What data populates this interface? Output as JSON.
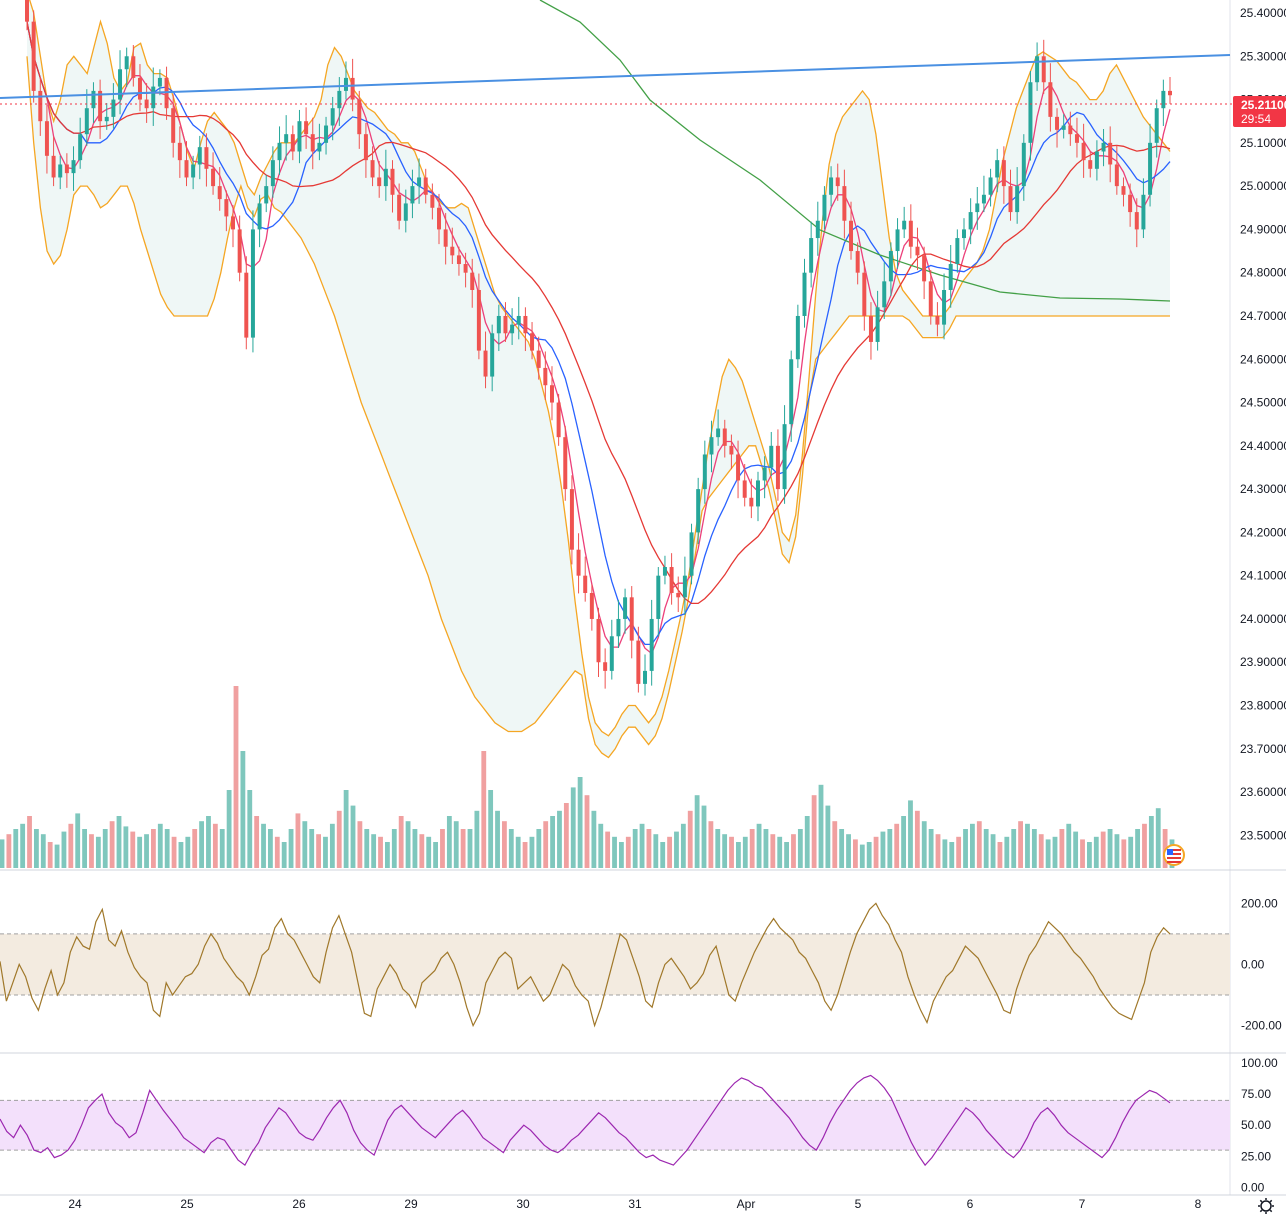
{
  "chart_data": [
    {
      "type": "candlestick",
      "y_ticks": [
        "25.40000",
        "25.30000",
        "25.20000",
        "25.10000",
        "25.00000",
        "24.90000",
        "24.80000",
        "24.70000",
        "24.60000",
        "24.50000",
        "24.40000",
        "24.30000",
        "24.20000",
        "24.10000",
        "24.00000",
        "23.90000",
        "23.80000",
        "23.70000",
        "23.60000",
        "23.50000"
      ],
      "ylim": [
        23.42,
        25.43
      ],
      "x_ticks": [
        "24",
        "25",
        "26",
        "29",
        "30",
        "31",
        "Apr",
        "5",
        "6",
        "7",
        "8"
      ],
      "price_label": {
        "value": "25.21100",
        "countdown": "29:54",
        "color": "#f23645"
      },
      "colors": {
        "up": "#26a69a",
        "down": "#ef5350",
        "trend_line": "#4a90e2",
        "bb_band": "#f5a623",
        "bb_basis": "#2962ff",
        "ma_fast": "#ec407a",
        "ma_mid": "#e53935",
        "ma_slow": "#43a047",
        "cci": "#a0782a",
        "rsi": "#9c27b0",
        "volume_up": "#7fc7bd",
        "volume_down": "#f0a0a0"
      },
      "close_series": [
        25.38,
        25.22,
        25.15,
        25.07,
        25.02,
        25.05,
        25.03,
        25.06,
        25.12,
        25.18,
        25.22,
        25.15,
        25.16,
        25.2,
        25.27,
        25.3,
        25.25,
        25.2,
        25.18,
        25.23,
        25.25,
        25.18,
        25.1,
        25.06,
        25.02,
        25.05,
        25.09,
        25.04,
        25.0,
        24.97,
        24.93,
        24.9,
        24.8,
        24.65,
        24.9,
        24.96,
        25.0,
        25.06,
        25.1,
        25.12,
        25.08,
        25.15,
        25.12,
        25.08,
        25.1,
        25.14,
        25.18,
        25.22,
        25.25,
        25.2,
        25.12,
        25.06,
        25.02,
        25.0,
        25.04,
        24.98,
        24.92,
        24.96,
        25.0,
        25.02,
        24.98,
        24.95,
        24.9,
        24.86,
        24.84,
        24.82,
        24.8,
        24.76,
        24.62,
        24.56,
        24.66,
        24.7,
        24.66,
        24.68,
        24.7,
        24.66,
        24.62,
        24.58,
        24.54,
        24.5,
        24.42,
        24.3,
        24.16,
        24.1,
        24.06,
        24.0,
        23.9,
        23.88,
        23.96,
        24.0,
        24.05,
        23.95,
        23.85,
        23.88,
        24.0,
        24.1,
        24.12,
        24.06,
        24.05,
        24.1,
        24.2,
        24.3,
        24.38,
        24.42,
        24.44,
        24.4,
        24.38,
        24.32,
        24.28,
        24.26,
        24.32,
        24.35,
        24.4,
        24.3,
        24.45,
        24.6,
        24.7,
        24.8,
        24.88,
        24.92,
        24.98,
        25.02,
        25.0,
        24.92,
        24.85,
        24.8,
        24.7,
        24.64,
        24.72,
        24.78,
        24.85,
        24.9,
        24.92,
        24.86,
        24.84,
        24.78,
        24.7,
        24.68,
        24.76,
        24.82,
        24.88,
        24.9,
        24.94,
        24.96,
        24.98,
        25.02,
        25.06,
        25.0,
        24.94,
        25.0,
        25.1,
        25.24,
        25.3,
        25.24,
        25.16,
        25.13,
        25.14,
        25.12,
        25.1,
        25.06,
        25.04,
        25.08,
        25.1,
        25.05,
        25.0,
        24.98,
        24.94,
        24.9,
        24.98,
        25.1,
        25.18,
        25.22,
        25.21
      ],
      "bb_upper_series": [
        25.45,
        25.4,
        25.3,
        25.2,
        25.15,
        25.2,
        25.28,
        25.3,
        25.28,
        25.26,
        25.32,
        25.38,
        25.33,
        25.25,
        25.22,
        25.24,
        25.32,
        25.33,
        25.28,
        25.26,
        25.26,
        25.25,
        25.2,
        25.14,
        25.08,
        25.04,
        25.1,
        25.15,
        25.17,
        25.15,
        25.13,
        25.1,
        25.05,
        25.0,
        24.98,
        25.02,
        25.05,
        25.08,
        25.1,
        25.1,
        25.1,
        25.12,
        25.14,
        25.16,
        25.2,
        25.28,
        25.32,
        25.3,
        25.26,
        25.22,
        25.2,
        25.18,
        25.17,
        25.15,
        25.13,
        25.12,
        25.1,
        25.1,
        25.08,
        25.04,
        25.0,
        24.98,
        24.96,
        24.95,
        24.95,
        24.96,
        24.95,
        24.9,
        24.85,
        24.8,
        24.75,
        24.72,
        24.7,
        24.68,
        24.66,
        24.64,
        24.6,
        24.54,
        24.48,
        24.4,
        24.3,
        24.18,
        24.04,
        23.92,
        23.82,
        23.76,
        23.74,
        23.73,
        23.75,
        23.78,
        23.8,
        23.8,
        23.78,
        23.76,
        23.78,
        23.82,
        23.88,
        23.95,
        24.02,
        24.1,
        24.2,
        24.3,
        24.4,
        24.48,
        24.56,
        24.6,
        24.58,
        24.55,
        24.5,
        24.45,
        24.4,
        24.35,
        24.28,
        24.2,
        24.18,
        24.24,
        24.38,
        24.56,
        24.75,
        24.92,
        25.05,
        25.12,
        25.16,
        25.18,
        25.2,
        25.22,
        25.2,
        25.12,
        25.0,
        24.88,
        24.8,
        24.76,
        24.74,
        24.72,
        24.7,
        24.7,
        24.7,
        24.7,
        24.72,
        24.75,
        24.78,
        24.8,
        24.82,
        24.85,
        24.9,
        24.98,
        25.06,
        25.12,
        25.18,
        25.22,
        25.26,
        25.3,
        25.31,
        25.3,
        25.29,
        25.27,
        25.25,
        25.24,
        25.22,
        25.2,
        25.2,
        25.22,
        25.26,
        25.28,
        25.25,
        25.22,
        25.19,
        25.16,
        25.14,
        25.12,
        25.1,
        25.08
      ],
      "bb_lower_series": [
        25.3,
        25.1,
        24.95,
        24.85,
        24.82,
        24.84,
        24.9,
        24.98,
        25.0,
        25.0,
        24.98,
        24.95,
        24.96,
        24.98,
        25.0,
        25.0,
        24.96,
        24.9,
        24.85,
        24.8,
        24.75,
        24.72,
        24.7,
        24.7,
        24.7,
        24.7,
        24.7,
        24.7,
        24.74,
        24.8,
        24.88,
        24.95,
        25.0,
        25.02,
        25.02,
        25.0,
        24.98,
        24.95,
        24.94,
        24.92,
        24.9,
        24.88,
        24.85,
        24.82,
        24.78,
        24.74,
        24.7,
        24.65,
        24.6,
        24.55,
        24.5,
        24.46,
        24.42,
        24.38,
        24.34,
        24.3,
        24.26,
        24.22,
        24.18,
        24.14,
        24.1,
        24.05,
        24.0,
        23.96,
        23.92,
        23.88,
        23.85,
        23.82,
        23.8,
        23.78,
        23.76,
        23.75,
        23.74,
        23.74,
        23.74,
        23.75,
        23.76,
        23.78,
        23.8,
        23.82,
        23.84,
        23.86,
        23.88,
        23.9,
        23.92,
        23.94,
        23.96,
        23.98,
        24.0,
        24.02,
        24.04,
        24.06,
        24.08,
        24.1,
        24.12,
        24.14,
        24.16,
        24.18,
        24.2,
        24.22,
        24.24,
        24.26,
        24.28,
        24.3,
        24.32,
        24.34,
        24.36,
        24.38,
        24.4,
        24.42,
        24.44,
        24.46,
        24.48,
        24.5,
        24.52,
        24.54,
        24.56,
        24.58,
        24.6,
        24.62,
        24.64,
        24.66,
        24.68,
        24.7,
        24.7,
        24.7,
        24.7,
        24.7,
        24.7,
        24.7,
        24.7,
        24.7,
        24.7,
        24.7,
        24.7,
        24.7,
        24.7,
        24.7,
        24.7,
        24.7,
        24.7,
        24.7,
        24.7,
        24.7,
        24.7,
        24.7,
        24.7,
        24.7,
        24.7,
        24.7,
        24.7,
        24.7,
        24.7,
        24.7,
        24.7,
        24.7,
        24.7,
        24.7,
        24.7,
        24.7,
        24.7,
        24.7,
        24.7,
        24.7,
        24.7,
        24.7,
        24.7,
        24.7,
        24.7,
        24.7,
        24.7,
        24.7
      ],
      "volume_series": [
        22,
        26,
        30,
        34,
        40,
        30,
        26,
        20,
        18,
        28,
        34,
        42,
        30,
        26,
        24,
        30,
        36,
        40,
        32,
        28,
        24,
        26,
        30,
        34,
        30,
        24,
        20,
        24,
        30,
        36,
        40,
        34,
        30,
        60,
        140,
        90,
        60,
        40,
        34,
        30,
        24,
        20,
        30,
        42,
        36,
        30,
        26,
        24,
        34,
        44,
        60,
        48,
        36,
        30,
        26,
        24,
        20,
        30,
        40,
        36,
        30,
        26,
        24,
        20,
        30,
        40,
        36,
        30,
        30,
        44,
        90,
        60,
        44,
        36,
        30,
        24,
        20,
        24,
        30,
        36,
        40,
        44,
        50,
        62,
        70,
        56,
        44,
        34,
        28,
        24,
        20,
        24,
        30,
        34,
        30,
        26,
        20,
        24,
        28,
        34,
        44,
        56,
        48,
        36,
        30,
        26,
        24,
        20,
        24,
        30,
        34,
        30,
        26,
        24,
        20,
        26,
        30,
        40,
        56,
        64,
        48,
        36,
        30,
        26,
        22,
        18,
        20,
        24,
        28,
        30,
        34,
        40,
        52,
        44,
        36,
        30,
        26,
        22,
        20,
        24,
        30,
        34,
        36,
        30,
        26,
        20,
        24,
        30,
        36,
        34,
        30,
        26,
        22,
        24,
        30,
        34,
        28,
        22,
        20,
        24,
        28,
        30,
        26,
        22,
        24,
        30,
        34,
        40,
        46,
        30,
        22
      ],
      "cci": {
        "y_ticks": [
          "200.00",
          "0.00",
          "-200.00"
        ],
        "ylim": [
          -280,
          260
        ],
        "band": [
          -100,
          100
        ],
        "series": [
          10,
          -120,
          -60,
          0,
          -40,
          -110,
          -150,
          -80,
          -20,
          -100,
          -60,
          40,
          90,
          60,
          50,
          140,
          180,
          80,
          60,
          110,
          40,
          -10,
          -40,
          -60,
          -150,
          -170,
          -60,
          -100,
          -70,
          -40,
          -30,
          0,
          60,
          100,
          70,
          20,
          -10,
          -40,
          -60,
          -100,
          -40,
          30,
          50,
          120,
          150,
          100,
          80,
          40,
          0,
          -40,
          -60,
          40,
          120,
          160,
          100,
          40,
          -60,
          -160,
          -170,
          -80,
          -40,
          0,
          -30,
          -80,
          -100,
          -140,
          -60,
          -40,
          -20,
          20,
          40,
          0,
          -60,
          -140,
          -200,
          -160,
          -60,
          -20,
          20,
          40,
          20,
          -80,
          -60,
          -40,
          -80,
          -120,
          -100,
          -50,
          0,
          -20,
          -70,
          -100,
          -120,
          -200,
          -140,
          -60,
          20,
          100,
          80,
          20,
          -40,
          -120,
          -140,
          -60,
          0,
          20,
          -10,
          -40,
          -80,
          -60,
          -30,
          30,
          60,
          -20,
          -100,
          -120,
          -60,
          -10,
          40,
          80,
          120,
          150,
          120,
          100,
          80,
          40,
          20,
          -20,
          -60,
          -120,
          -150,
          -100,
          -30,
          40,
          100,
          140,
          180,
          200,
          160,
          130,
          80,
          40,
          -40,
          -100,
          -150,
          -190,
          -120,
          -80,
          -40,
          -20,
          20,
          60,
          40,
          20,
          -20,
          -60,
          -100,
          -150,
          -160,
          -80,
          -20,
          30,
          60,
          100,
          140,
          120,
          100,
          70,
          40,
          20,
          -10,
          -40,
          -80,
          -110,
          -140,
          -160,
          -170,
          -180,
          -120,
          -60,
          40,
          90,
          120,
          100
        ]
      },
      "rsi": {
        "y_ticks": [
          "100.00",
          "75.00",
          "50.00",
          "25.00",
          "0.00"
        ],
        "ylim": [
          -2,
          108
        ],
        "band": [
          30,
          70
        ],
        "series": [
          55,
          45,
          40,
          50,
          42,
          30,
          28,
          32,
          24,
          26,
          30,
          38,
          50,
          64,
          70,
          75,
          60,
          52,
          48,
          40,
          44,
          60,
          78,
          70,
          62,
          55,
          48,
          40,
          36,
          32,
          28,
          36,
          40,
          38,
          30,
          22,
          18,
          28,
          36,
          48,
          56,
          64,
          60,
          52,
          44,
          40,
          38,
          46,
          56,
          64,
          70,
          60,
          46,
          36,
          30,
          26,
          40,
          54,
          62,
          66,
          60,
          54,
          48,
          44,
          40,
          46,
          52,
          58,
          62,
          56,
          48,
          40,
          36,
          32,
          28,
          38,
          44,
          50,
          46,
          40,
          34,
          30,
          28,
          32,
          38,
          42,
          48,
          54,
          60,
          56,
          50,
          44,
          40,
          34,
          28,
          24,
          26,
          22,
          20,
          18,
          24,
          30,
          38,
          46,
          54,
          62,
          70,
          78,
          84,
          88,
          86,
          82,
          80,
          74,
          68,
          62,
          56,
          48,
          40,
          34,
          30,
          40,
          52,
          62,
          70,
          78,
          84,
          88,
          90,
          86,
          80,
          72,
          60,
          48,
          36,
          26,
          18,
          24,
          32,
          40,
          48,
          56,
          64,
          60,
          54,
          46,
          40,
          34,
          28,
          24,
          30,
          40,
          52,
          60,
          64,
          58,
          50,
          44,
          40,
          36,
          32,
          28,
          24,
          30,
          40,
          52,
          62,
          70,
          74,
          78,
          76,
          72,
          68
        ]
      }
    }
  ]
}
